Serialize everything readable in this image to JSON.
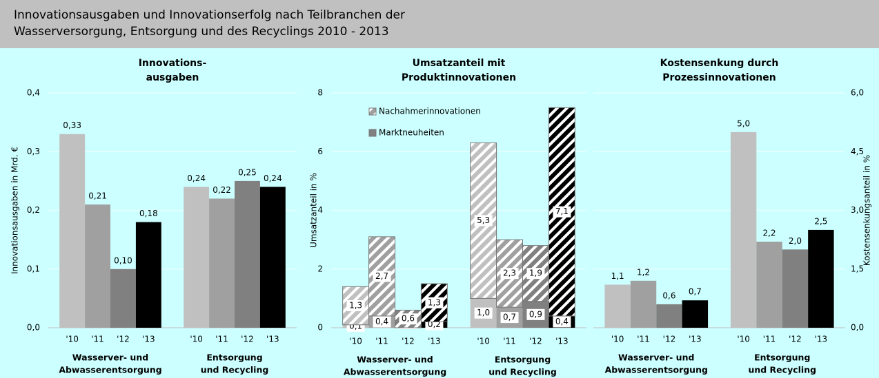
{
  "header": {
    "title": [
      "Innovationsausgaben und Innovationserfolg nach Teilbranchen der",
      "Wasserversorgung, Entsorgung und des Recyclings 2010 - 2013"
    ]
  },
  "chart_data": [
    {
      "type": "bar",
      "title": [
        "Innovations-",
        "ausgaben"
      ],
      "ylabel": "Innovationsausgaben in Mrd. €",
      "categories": [
        "'10",
        "'11",
        "'12",
        "'13",
        "'10",
        "'11",
        "'12",
        "'13"
      ],
      "groups": [
        [
          "Wasserver- und",
          "Abwasserentsorgung"
        ],
        [
          "Entsorgung",
          "und Recycling"
        ]
      ],
      "values": [
        0.33,
        0.21,
        0.1,
        0.18,
        0.24,
        0.22,
        0.25,
        0.24
      ],
      "value_labels": [
        "0,33",
        "0,21",
        "0,10",
        "0,18",
        "0,24",
        "0,22",
        "0,25",
        "0,24"
      ],
      "colors": [
        "#c0c0c0",
        "#a0a0a0",
        "#808080",
        "#000000"
      ],
      "ylim": [
        0,
        0.4
      ],
      "yticks": [
        {
          "value": 0,
          "label": "0,0"
        },
        {
          "value": 0.1,
          "label": "0,1"
        },
        {
          "value": 0.2,
          "label": "0,2"
        },
        {
          "value": 0.3,
          "label": "0,3"
        },
        {
          "value": 0.4,
          "label": "0,4"
        }
      ],
      "grid": true
    },
    {
      "type": "stacked_bar",
      "title": [
        "Umsatzanteil mit",
        "Produktinnovationen"
      ],
      "ylabel": "Umsatzanteil in %",
      "categories": [
        "'10",
        "'11",
        "'12",
        "'13",
        "'10",
        "'11",
        "'12",
        "'13"
      ],
      "groups": [
        [
          "Wasserver- und",
          "Abwasserentsorgung"
        ],
        [
          "Entsorgung",
          "und Recycling"
        ]
      ],
      "series": [
        {
          "name": "Marktneuheiten",
          "colors": [
            "#c0c0c0",
            "#a0a0a0",
            "#808080",
            "#000000"
          ],
          "values": [
            0.1,
            0.4,
            0.0,
            0.2,
            1.0,
            0.7,
            0.9,
            0.4
          ],
          "value_labels": [
            "0,1",
            "0,4",
            "0,0",
            "0,2",
            "1,0",
            "0,7",
            "0,9",
            "0,4"
          ]
        },
        {
          "name": "Nachahmerinnovationen",
          "hatch": true,
          "colors": [
            "#c0c0c0",
            "#a0a0a0",
            "#808080",
            "#000000"
          ],
          "values": [
            1.3,
            2.7,
            0.6,
            1.3,
            5.3,
            2.3,
            1.9,
            7.1
          ],
          "value_labels": [
            "1,3",
            "2,7",
            "0,6",
            "1,3",
            "5,3",
            "2,3",
            "1,9",
            "7,1"
          ]
        }
      ],
      "ylim": [
        0,
        8
      ],
      "yticks": [
        0,
        2,
        4,
        6,
        8
      ],
      "grid": true
    },
    {
      "type": "bar",
      "axis": "y2",
      "title": [
        "Kostensenkung durch",
        "Prozessinnovationen"
      ],
      "y2label": "Kostensenkungsanteil in %",
      "categories": [
        "'10",
        "'11",
        "'12",
        "'13",
        "'10",
        "'11",
        "'12",
        "'13"
      ],
      "groups": [
        [
          "Wasserver- und",
          "Abwasserentsorgung"
        ],
        [
          "Entsorgung",
          "und Recycling"
        ]
      ],
      "values": [
        1.1,
        1.2,
        0.6,
        0.7,
        5.0,
        2.2,
        2.0,
        2.5
      ],
      "value_labels": [
        "1,1",
        "1,2",
        "0,6",
        "0,7",
        "5,0",
        "2,2",
        "2,0",
        "2,5"
      ],
      "colors": [
        "#c0c0c0",
        "#a0a0a0",
        "#808080",
        "#000000"
      ],
      "y2lim": [
        0,
        6
      ],
      "y2ticks": [
        {
          "value": 0,
          "label": "0,0"
        },
        {
          "value": 1.5,
          "label": "1,5"
        },
        {
          "value": 3,
          "label": "3,0"
        },
        {
          "value": 4.5,
          "label": "4,5"
        },
        {
          "value": 6,
          "label": "6,0"
        }
      ],
      "grid": true
    }
  ]
}
